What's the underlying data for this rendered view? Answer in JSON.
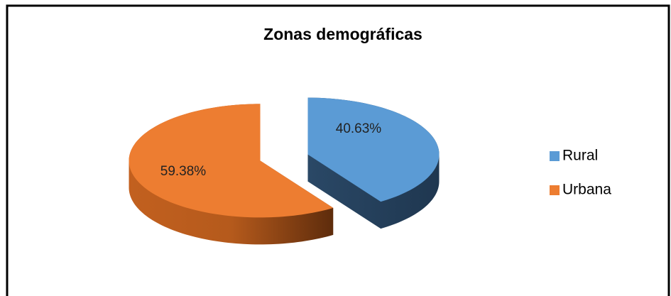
{
  "chart_data": {
    "type": "pie3d",
    "title": "Zonas demográficas",
    "categories": [
      "Rural",
      "Urbana"
    ],
    "values": [
      40.63,
      59.38
    ],
    "value_labels": [
      "40.63%",
      "59.38%"
    ],
    "colors": [
      "#5b9bd5",
      "#ed7d31"
    ],
    "legend": "right",
    "exploded": true
  }
}
